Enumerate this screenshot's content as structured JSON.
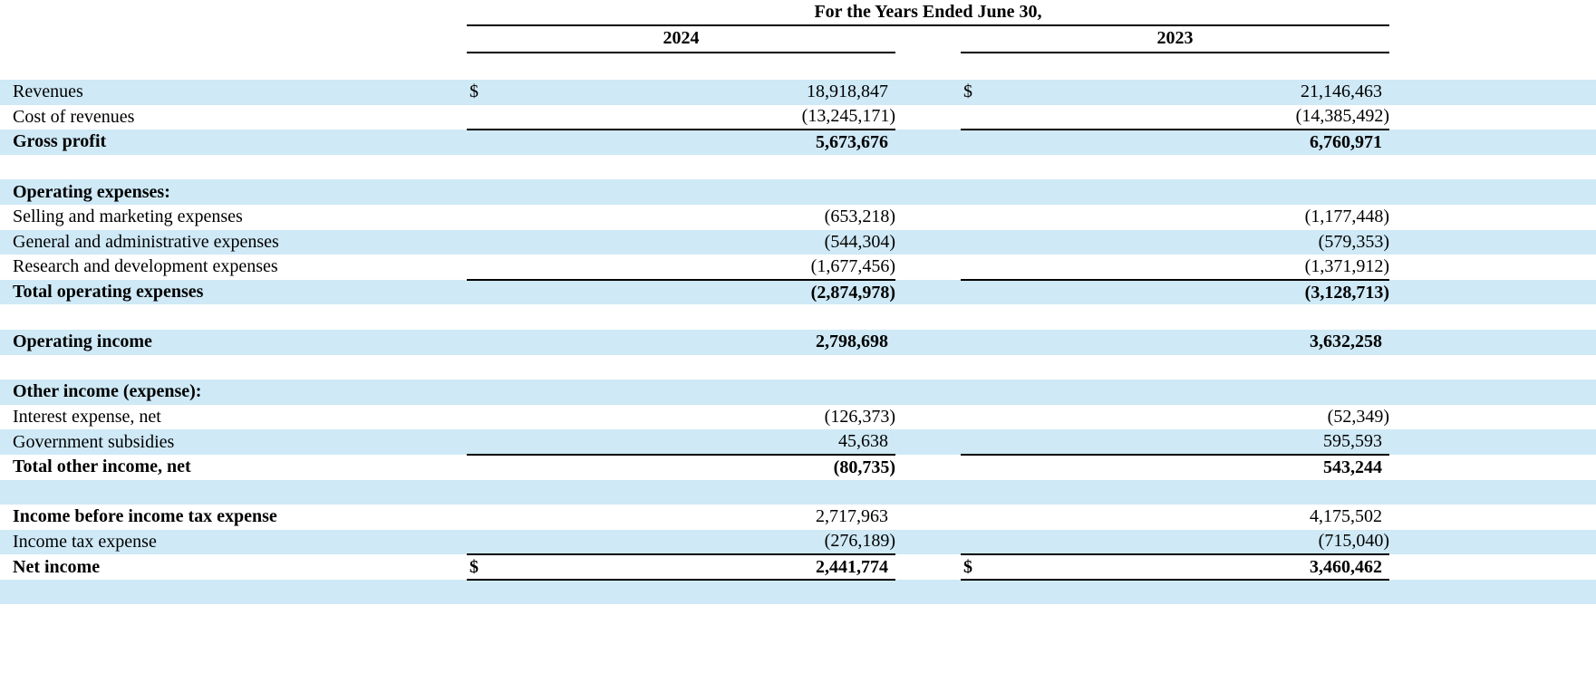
{
  "header": {
    "title": "For the Years Ended June 30,",
    "col2024": "2024",
    "col2023": "2023"
  },
  "colors": {
    "row_stripe_blue": "#cfe9f6",
    "rule_black": "#000000",
    "text": "#000000",
    "background": "#ffffff"
  },
  "table": {
    "rows": [
      {
        "label": "Revenues",
        "d1": "$",
        "v1": "18,918,847",
        "d2": "$",
        "v2": "21,146,463",
        "bg": "blue",
        "labelBold": false,
        "valueBold": false,
        "rule": "none"
      },
      {
        "label": "Cost of revenues",
        "d1": "",
        "v1": "(13,245,171)",
        "d2": "",
        "v2": "(14,385,492)",
        "bg": "white",
        "labelBold": false,
        "valueBold": false,
        "rule": "bottom"
      },
      {
        "label": "Gross profit",
        "d1": "",
        "v1": "5,673,676",
        "d2": "",
        "v2": "6,760,971",
        "bg": "blue",
        "labelBold": true,
        "valueBold": true,
        "rule": "none"
      },
      {
        "label": "",
        "d1": "",
        "v1": "",
        "d2": "",
        "v2": "",
        "bg": "white",
        "labelBold": false,
        "valueBold": false,
        "rule": "none"
      },
      {
        "label": "Operating expenses:",
        "d1": "",
        "v1": "",
        "d2": "",
        "v2": "",
        "bg": "blue",
        "labelBold": true,
        "valueBold": false,
        "rule": "none"
      },
      {
        "label": "Selling and marketing expenses",
        "d1": "",
        "v1": "(653,218)",
        "d2": "",
        "v2": "(1,177,448)",
        "bg": "white",
        "labelBold": false,
        "valueBold": false,
        "rule": "none"
      },
      {
        "label": "General and administrative expenses",
        "d1": "",
        "v1": "(544,304)",
        "d2": "",
        "v2": "(579,353)",
        "bg": "blue",
        "labelBold": false,
        "valueBold": false,
        "rule": "none"
      },
      {
        "label": "Research and development expenses",
        "d1": "",
        "v1": "(1,677,456)",
        "d2": "",
        "v2": "(1,371,912)",
        "bg": "white",
        "labelBold": false,
        "valueBold": false,
        "rule": "bottom"
      },
      {
        "label": "Total operating expenses",
        "d1": "",
        "v1": "(2,874,978)",
        "d2": "",
        "v2": "(3,128,713)",
        "bg": "blue",
        "labelBold": true,
        "valueBold": true,
        "rule": "none"
      },
      {
        "label": "",
        "d1": "",
        "v1": "",
        "d2": "",
        "v2": "",
        "bg": "white",
        "labelBold": false,
        "valueBold": false,
        "rule": "none"
      },
      {
        "label": "Operating income",
        "d1": "",
        "v1": "2,798,698",
        "d2": "",
        "v2": "3,632,258",
        "bg": "blue",
        "labelBold": true,
        "valueBold": true,
        "rule": "none"
      },
      {
        "label": "",
        "d1": "",
        "v1": "",
        "d2": "",
        "v2": "",
        "bg": "white",
        "labelBold": false,
        "valueBold": false,
        "rule": "none"
      },
      {
        "label": "Other income (expense):",
        "d1": "",
        "v1": "",
        "d2": "",
        "v2": "",
        "bg": "blue",
        "labelBold": true,
        "valueBold": false,
        "rule": "none"
      },
      {
        "label": "Interest expense, net",
        "d1": "",
        "v1": "(126,373)",
        "d2": "",
        "v2": "(52,349)",
        "bg": "white",
        "labelBold": false,
        "valueBold": false,
        "rule": "none"
      },
      {
        "label": "Government subsidies",
        "d1": "",
        "v1": "45,638",
        "d2": "",
        "v2": "595,593",
        "bg": "blue",
        "labelBold": false,
        "valueBold": false,
        "rule": "bottom"
      },
      {
        "label": "Total other income, net",
        "d1": "",
        "v1": "(80,735)",
        "d2": "",
        "v2": "543,244",
        "bg": "white",
        "labelBold": true,
        "valueBold": true,
        "rule": "none"
      },
      {
        "label": "",
        "d1": "",
        "v1": "",
        "d2": "",
        "v2": "",
        "bg": "blue",
        "labelBold": false,
        "valueBold": false,
        "rule": "none"
      },
      {
        "label": "Income before income tax expense",
        "d1": "",
        "v1": "2,717,963",
        "d2": "",
        "v2": "4,175,502",
        "bg": "white",
        "labelBold": true,
        "valueBold": false,
        "rule": "none"
      },
      {
        "label": "Income tax expense",
        "d1": "",
        "v1": "(276,189)",
        "d2": "",
        "v2": "(715,040)",
        "bg": "blue",
        "labelBold": false,
        "valueBold": false,
        "rule": "none"
      },
      {
        "label": "Net income",
        "d1": "$",
        "v1": "2,441,774",
        "d2": "$",
        "v2": "3,460,462",
        "bg": "white",
        "labelBold": true,
        "valueBold": true,
        "rule": "top-bottom"
      },
      {
        "label": "",
        "d1": "",
        "v1": "",
        "d2": "",
        "v2": "",
        "bg": "blue",
        "labelBold": false,
        "valueBold": false,
        "rule": "none"
      }
    ]
  }
}
